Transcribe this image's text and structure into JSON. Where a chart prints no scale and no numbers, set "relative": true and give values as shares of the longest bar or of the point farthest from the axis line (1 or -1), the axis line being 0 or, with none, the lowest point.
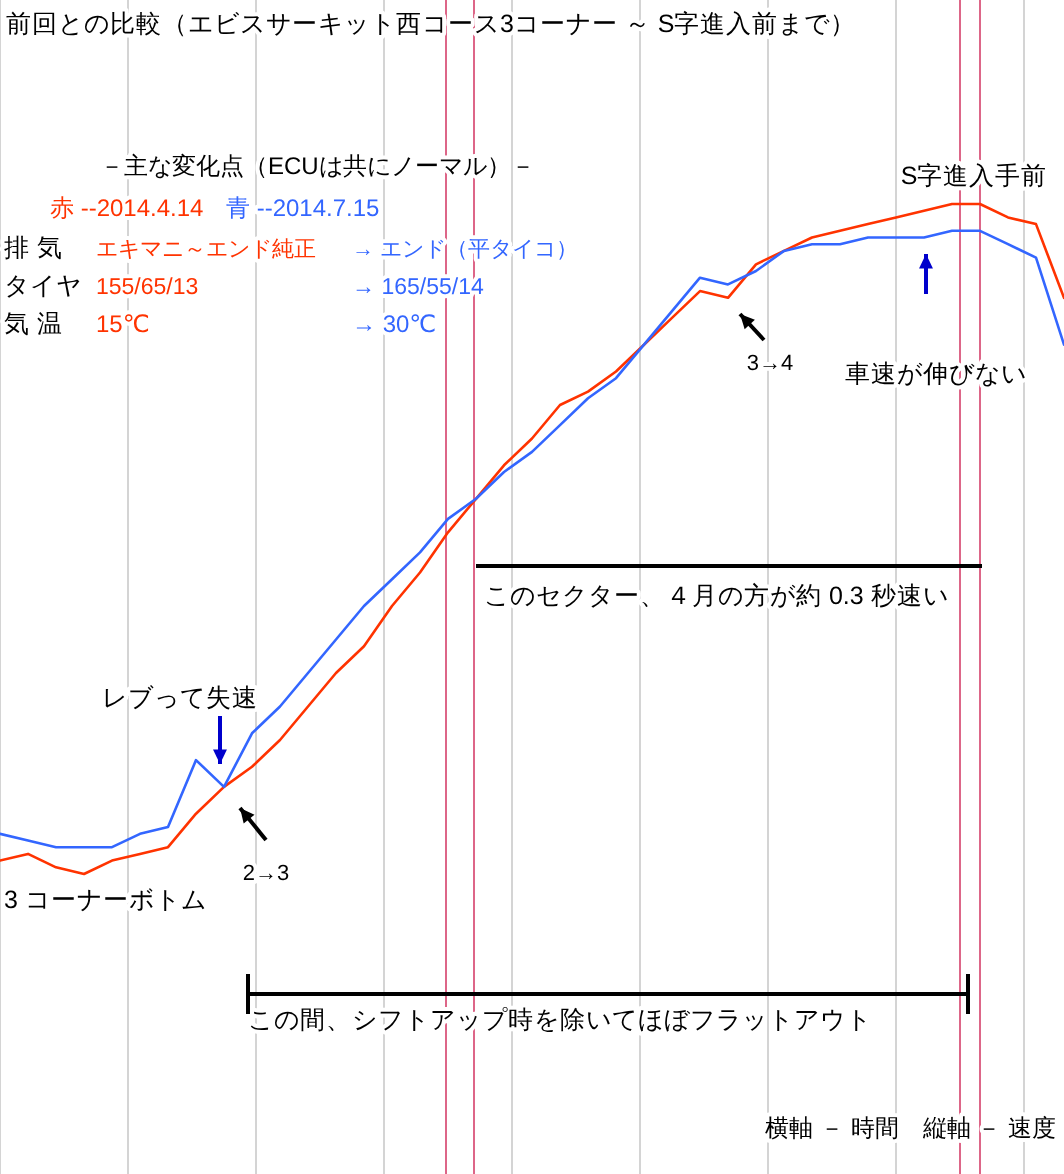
{
  "chart_data": {
    "type": "line",
    "relative": true,
    "title": "前回との比較（エビスサーキット西コース3コーナー ～ S字進入前まで）",
    "categories": [
      null,
      null,
      null,
      null,
      null,
      null,
      null,
      null,
      null,
      null,
      null,
      null,
      null,
      null,
      null,
      null,
      null,
      null,
      null,
      null,
      null,
      null,
      null,
      null,
      null,
      null,
      null,
      null,
      null,
      null,
      null,
      null,
      null,
      null,
      null,
      null,
      null,
      null,
      null
    ],
    "series": [
      {
        "name": "赤 --2014.4.14",
        "color": "#ff3300",
        "values": [
          0.02,
          0.03,
          0.01,
          0,
          0.02,
          0.03,
          0.04,
          0.09,
          0.13,
          0.16,
          0.2,
          0.25,
          0.3,
          0.34,
          0.4,
          0.45,
          0.51,
          0.56,
          0.61,
          0.65,
          0.7,
          0.72,
          0.75,
          0.79,
          0.83,
          0.87,
          0.86,
          0.91,
          0.93,
          0.95,
          0.96,
          0.97,
          0.98,
          0.99,
          1,
          1,
          0.98,
          0.97,
          0.86
        ]
      },
      {
        "name": "青 --2014.7.15",
        "color": "#3366ff",
        "values": [
          0.06,
          0.05,
          0.04,
          0.04,
          0.04,
          0.06,
          0.07,
          0.17,
          0.13,
          0.21,
          0.25,
          0.3,
          0.35,
          0.4,
          0.44,
          0.48,
          0.53,
          0.56,
          0.6,
          0.63,
          0.67,
          0.71,
          0.74,
          0.79,
          0.84,
          0.89,
          0.88,
          0.9,
          0.93,
          0.94,
          0.94,
          0.95,
          0.95,
          0.95,
          0.96,
          0.96,
          0.94,
          0.92,
          0.79
        ]
      }
    ],
    "legend": "top left",
    "grid": "x",
    "annotations": [
      "－主な変化点（ECUは共にノーマル）－",
      "排 気",
      "エキマニ～エンド純正",
      "→ エンド（平タイコ）",
      "タイヤ",
      "155/65/13",
      "→ 165/55/14",
      "気 温",
      "15℃",
      "→ 30℃",
      "S字進入手前",
      "車速が伸びない",
      "3→4",
      "このセクター、４月の方が約 0.3 秒速い",
      "レブって失速",
      "2→3",
      "3 コーナーボトム",
      "この間、シフトアップ時を除いてほぼフラットアウト",
      "横軸 － 時間　縦軸 － 速度"
    ]
  }
}
